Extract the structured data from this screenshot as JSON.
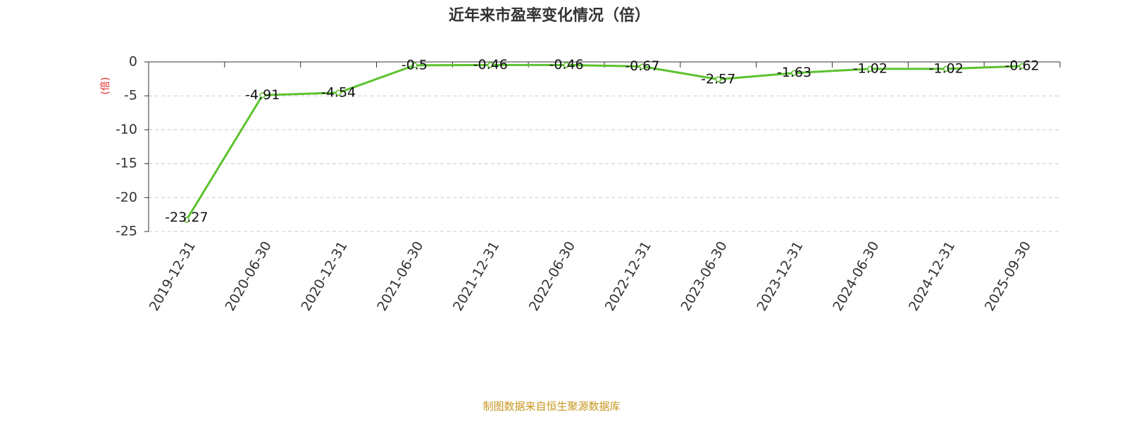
{
  "chart_data": {
    "type": "line",
    "title": "近年来市盈率变化情况（倍）",
    "y_label": "(倍)",
    "source": "制图数据来自恒生聚源数据库",
    "categories": [
      "2019-12-31",
      "2020-06-30",
      "2020-12-31",
      "2021-06-30",
      "2021-12-31",
      "2022-06-30",
      "2022-12-31",
      "2023-06-30",
      "2023-12-31",
      "2024-06-30",
      "2024-12-31",
      "2025-09-30"
    ],
    "values": [
      -23.27,
      -4.91,
      -4.54,
      -0.5,
      -0.46,
      -0.46,
      -0.67,
      -2.57,
      -1.63,
      -1.02,
      -1.02,
      -0.62
    ],
    "color": "#5cc22e",
    "ylim": [
      -25,
      0
    ],
    "yticks": [
      0,
      -5,
      -10,
      -15,
      -20,
      -25
    ],
    "grid": true
  }
}
